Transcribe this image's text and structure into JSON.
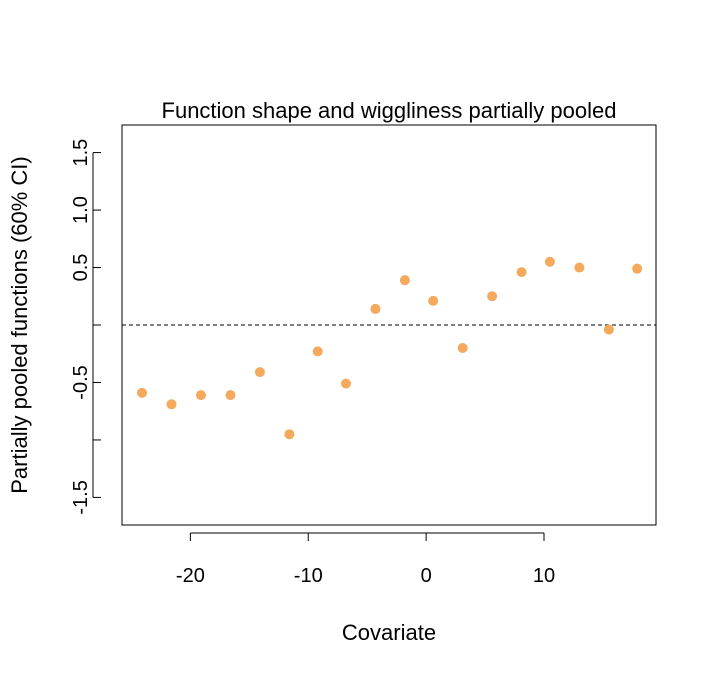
{
  "chart_data": {
    "type": "scatter",
    "title": "Function shape and wiggliness partially pooled",
    "xlabel": "Covariate",
    "ylabel": "Partially pooled functions (60% CI)",
    "xlim": [
      -25.8,
      19.5
    ],
    "ylim": [
      -1.74,
      1.74
    ],
    "x_ticks": [
      {
        "value": -20,
        "label": "-20"
      },
      {
        "value": -10,
        "label": "-10"
      },
      {
        "value": 0,
        "label": "0"
      },
      {
        "value": 10,
        "label": "10"
      }
    ],
    "y_ticks": [
      {
        "value": -1.5,
        "label": "-1.5",
        "labeled": true
      },
      {
        "value": -1.0,
        "label": "-1.0",
        "labeled": false
      },
      {
        "value": -0.5,
        "label": "-0.5",
        "labeled": true
      },
      {
        "value": 0.0,
        "label": "0.0",
        "labeled": false
      },
      {
        "value": 0.5,
        "label": "0.5",
        "labeled": true
      },
      {
        "value": 1.0,
        "label": "1.0",
        "labeled": true
      },
      {
        "value": 1.5,
        "label": "1.5",
        "labeled": true
      }
    ],
    "reference_line": {
      "y": 0,
      "style": "dashed"
    },
    "point_color": "#F4A95C",
    "points": [
      {
        "x": -24.1,
        "y": -0.59
      },
      {
        "x": -21.6,
        "y": -0.69
      },
      {
        "x": -19.1,
        "y": -0.61
      },
      {
        "x": -16.6,
        "y": -0.61
      },
      {
        "x": -14.1,
        "y": -0.41
      },
      {
        "x": -11.6,
        "y": -0.95
      },
      {
        "x": -9.2,
        "y": -0.23
      },
      {
        "x": -6.8,
        "y": -0.51
      },
      {
        "x": -4.3,
        "y": 0.14
      },
      {
        "x": -1.8,
        "y": 0.39
      },
      {
        "x": 0.6,
        "y": 0.21
      },
      {
        "x": 3.1,
        "y": -0.2
      },
      {
        "x": 5.6,
        "y": 0.25
      },
      {
        "x": 8.1,
        "y": 0.46
      },
      {
        "x": 10.5,
        "y": 0.55
      },
      {
        "x": 13.0,
        "y": 0.5
      },
      {
        "x": 15.5,
        "y": -0.04
      },
      {
        "x": 17.9,
        "y": 0.49
      }
    ]
  }
}
